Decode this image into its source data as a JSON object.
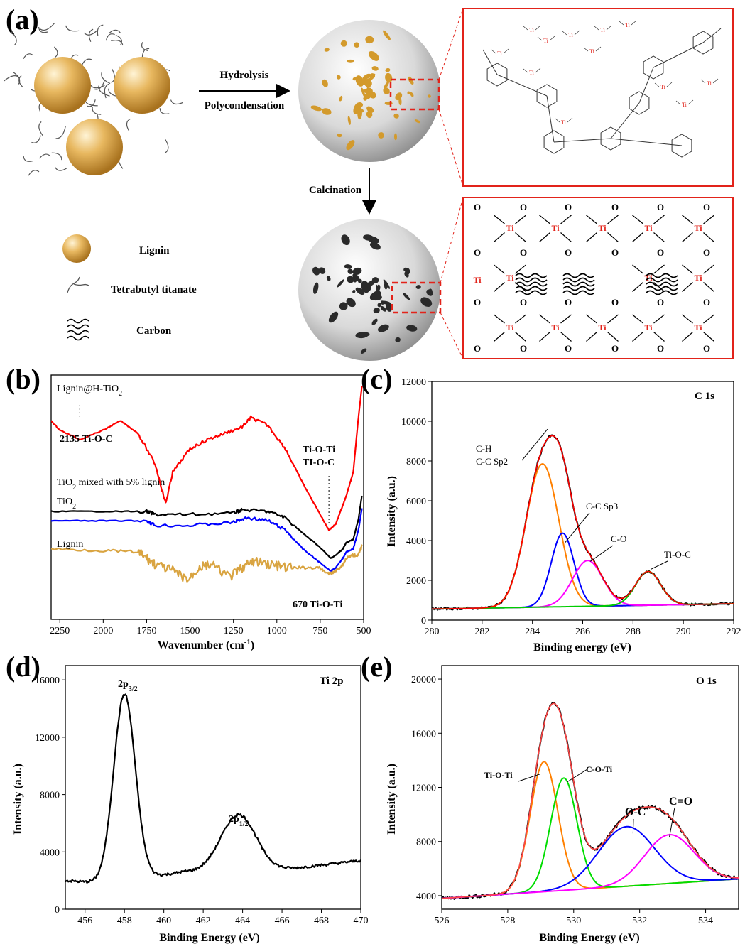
{
  "panels": {
    "a": "(a)",
    "b": "(b)",
    "c": "(c)",
    "d": "(d)",
    "e": "(e)"
  },
  "scheme": {
    "arrow1_top": "Hydrolysis",
    "arrow1_bottom": "Polycondensation",
    "arrow2": "Calcination",
    "legend": [
      {
        "icon": "sphere-icon",
        "label": "Lignin"
      },
      {
        "icon": "wavy-strand-icon",
        "label": "Tetrabutyl titanate"
      },
      {
        "icon": "wavy-lines-icon",
        "label": "Carbon"
      }
    ],
    "atom_ti": "Ti",
    "atom_o": "O",
    "colors": {
      "ti": "#e2231a",
      "box": "#e2231a",
      "lignin": "#d9a441",
      "sphere": "#d7d7d7"
    }
  },
  "chart_data": [
    {
      "id": "b",
      "type": "line",
      "xlabel": "Wavenumber (cm",
      "xlabel_sup": "-1",
      "xlabel_end": ")",
      "xlim": [
        2300,
        500
      ],
      "xticks": [
        2250,
        2000,
        1750,
        1500,
        1250,
        1000,
        750,
        500
      ],
      "series": [
        {
          "name": "Lignin@H-TiO",
          "name_sub": "2",
          "color": "#ff0000",
          "points": [
            [
              2300,
              0.22
            ],
            [
              2250,
              0.28
            ],
            [
              2135,
              0.34
            ],
            [
              2000,
              0.28
            ],
            [
              1900,
              0.22
            ],
            [
              1800,
              0.3
            ],
            [
              1700,
              0.5
            ],
            [
              1640,
              0.75
            ],
            [
              1600,
              0.55
            ],
            [
              1500,
              0.4
            ],
            [
              1400,
              0.34
            ],
            [
              1300,
              0.3
            ],
            [
              1200,
              0.26
            ],
            [
              1150,
              0.2
            ],
            [
              1050,
              0.25
            ],
            [
              950,
              0.4
            ],
            [
              850,
              0.62
            ],
            [
              760,
              0.8
            ],
            [
              700,
              0.92
            ],
            [
              660,
              0.88
            ],
            [
              620,
              0.76
            ],
            [
              600,
              0.7
            ],
            [
              560,
              0.55
            ],
            [
              530,
              0.2
            ],
            [
              510,
              0.0
            ]
          ]
        },
        {
          "name": "TiO",
          "name_sub": "2",
          "name_end": " mixed with 5% lignin",
          "color": "#000000",
          "points": [
            [
              2300,
              0.8
            ],
            [
              2000,
              0.8
            ],
            [
              1750,
              0.8
            ],
            [
              1700,
              0.82
            ],
            [
              1500,
              0.82
            ],
            [
              1250,
              0.81
            ],
            [
              1200,
              0.79
            ],
            [
              1050,
              0.8
            ],
            [
              950,
              0.84
            ],
            [
              850,
              0.94
            ],
            [
              760,
              1.02
            ],
            [
              690,
              1.1
            ],
            [
              660,
              1.08
            ],
            [
              620,
              1.04
            ],
            [
              600,
              1.0
            ],
            [
              560,
              0.98
            ],
            [
              530,
              0.85
            ],
            [
              510,
              0.7
            ]
          ]
        },
        {
          "name": "TiO",
          "name_sub": "2",
          "color": "#0000ff",
          "points": [
            [
              2300,
              0.86
            ],
            [
              2000,
              0.86
            ],
            [
              1750,
              0.86
            ],
            [
              1700,
              0.89
            ],
            [
              1500,
              0.89
            ],
            [
              1250,
              0.87
            ],
            [
              1170,
              0.84
            ],
            [
              1050,
              0.86
            ],
            [
              950,
              0.92
            ],
            [
              850,
              1.04
            ],
            [
              760,
              1.12
            ],
            [
              690,
              1.18
            ],
            [
              660,
              1.16
            ],
            [
              620,
              1.1
            ],
            [
              600,
              1.06
            ],
            [
              560,
              1.04
            ],
            [
              530,
              0.92
            ],
            [
              510,
              0.78
            ]
          ]
        },
        {
          "name": "Lignin",
          "color": "#d9a441",
          "points": [
            [
              2300,
              1.04
            ],
            [
              2000,
              1.05
            ],
            [
              1800,
              1.06
            ],
            [
              1750,
              1.1
            ],
            [
              1700,
              1.14
            ],
            [
              1600,
              1.18
            ],
            [
              1510,
              1.24
            ],
            [
              1450,
              1.16
            ],
            [
              1380,
              1.14
            ],
            [
              1270,
              1.22
            ],
            [
              1200,
              1.16
            ],
            [
              1130,
              1.12
            ],
            [
              1030,
              1.14
            ],
            [
              950,
              1.16
            ],
            [
              850,
              1.16
            ],
            [
              760,
              1.16
            ],
            [
              700,
              1.2
            ],
            [
              660,
              1.18
            ],
            [
              620,
              1.14
            ],
            [
              600,
              1.1
            ],
            [
              560,
              1.08
            ],
            [
              530,
              1.08
            ],
            [
              510,
              1.02
            ]
          ]
        }
      ],
      "annotations": [
        "2135 Ti-O-C",
        "Ti-O-Ti",
        "TI-O-C",
        "670 Ti-O-Ti"
      ]
    },
    {
      "id": "c",
      "type": "line",
      "title": "C 1s",
      "xlabel": "Binding energy (eV)",
      "ylabel": "Intensity (a.u.)",
      "xlim": [
        280,
        292
      ],
      "ylim": [
        0,
        12000
      ],
      "xticks": [
        280,
        282,
        284,
        286,
        288,
        290,
        292
      ],
      "yticks": [
        0,
        2000,
        4000,
        6000,
        8000,
        10000,
        12000
      ],
      "background": 560,
      "peaks": [
        {
          "label": "C-H",
          "label2": "C-C Sp2",
          "center": 284.4,
          "height": 7200,
          "width": 0.65,
          "color": "#ff8000"
        },
        {
          "label": "C-C Sp3",
          "center": 285.2,
          "height": 3700,
          "width": 0.45,
          "color": "#0000ff"
        },
        {
          "label": "C-O",
          "center": 286.2,
          "height": 2300,
          "width": 0.6,
          "color": "#ff00ff"
        },
        {
          "label": "Ti-O-C",
          "center": 288.6,
          "height": 1700,
          "width": 0.5,
          "color": "#00cc00"
        }
      ],
      "envelope_color": "#ff0000",
      "raw_color": "#000000"
    },
    {
      "id": "d",
      "type": "line",
      "title": "Ti 2p",
      "xlabel": "Binding Energy (eV)",
      "ylabel": "Intensity (a.u.)",
      "xlim": [
        455,
        470
      ],
      "ylim": [
        0,
        17000
      ],
      "xticks": [
        456,
        458,
        460,
        462,
        464,
        466,
        468,
        470
      ],
      "yticks": [
        0,
        4000,
        8000,
        12000,
        16000
      ],
      "peaks": [
        {
          "label": "2p",
          "label_sub": "3/2",
          "center": 458.0,
          "height": 13000,
          "width": 0.55
        },
        {
          "label": "2p",
          "label_sub": "1/2",
          "center": 463.8,
          "height": 4000,
          "width": 0.9
        }
      ],
      "color": "#000000"
    },
    {
      "id": "e",
      "type": "line",
      "title": "O 1s",
      "xlabel": "Binding Energy (eV)",
      "ylabel": "Intensity (a.u.)",
      "xlim": [
        526,
        535
      ],
      "ylim": [
        3000,
        21000
      ],
      "xticks": [
        526,
        528,
        530,
        532,
        534
      ],
      "yticks": [
        4000,
        8000,
        12000,
        16000,
        20000
      ],
      "background": 3800,
      "peaks": [
        {
          "label": "Ti-O-Ti",
          "center": 529.1,
          "height": 9600,
          "width": 0.42,
          "color": "#ff8000"
        },
        {
          "label": "C-O-Ti",
          "center": 529.7,
          "height": 8300,
          "width": 0.4,
          "color": "#00dd00"
        },
        {
          "label": "O-C",
          "center": 531.6,
          "height": 4400,
          "width": 0.85,
          "color": "#0000ff"
        },
        {
          "label": "C=O",
          "center": 532.9,
          "height": 3600,
          "width": 0.75,
          "color": "#ff00ff"
        }
      ],
      "envelope_color": "#ff4444",
      "raw_color": "#000000"
    }
  ]
}
